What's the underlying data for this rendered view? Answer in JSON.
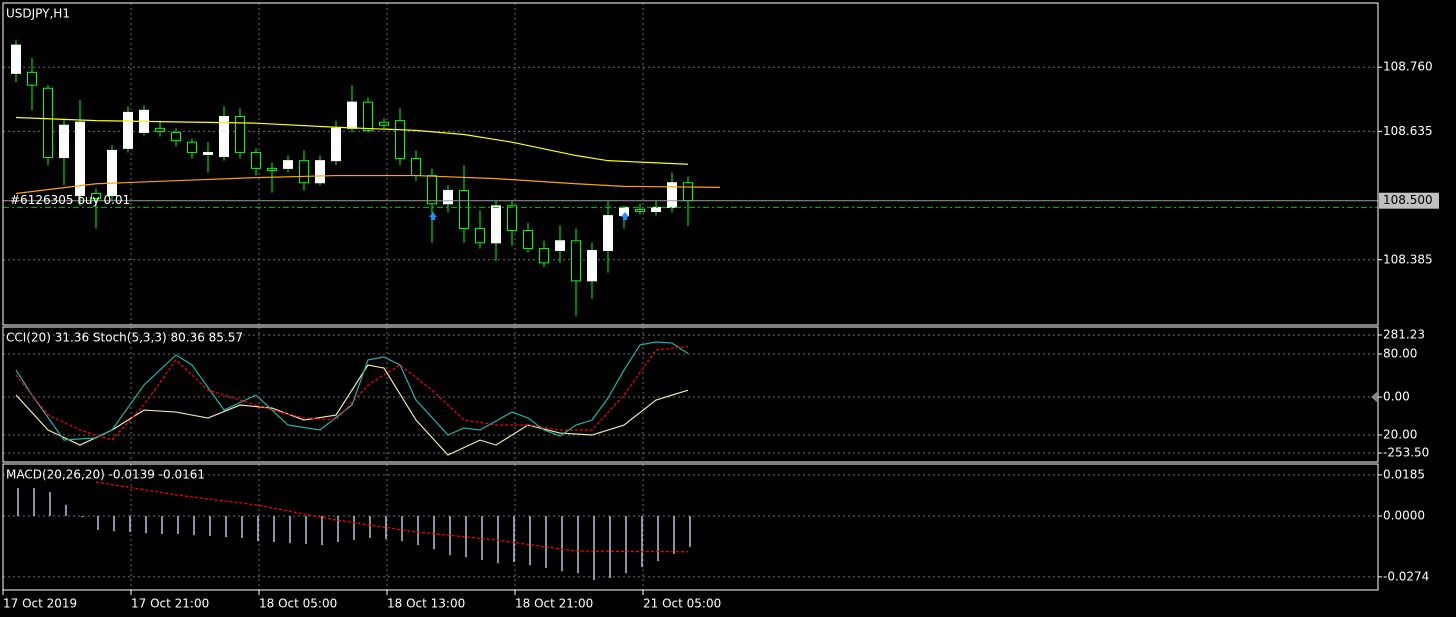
{
  "chart_data": [
    {
      "type": "candlestick",
      "title": "USDJPY,H1",
      "open": [
        108.748,
        108.75,
        108.719,
        108.584,
        108.51,
        108.514,
        108.51,
        108.602,
        108.633,
        108.641,
        108.633,
        108.614,
        108.59,
        108.586,
        108.664,
        108.594,
        108.563,
        108.563,
        108.578,
        108.535,
        108.578,
        108.641,
        108.692,
        108.653,
        108.656,
        108.582,
        108.549,
        108.494,
        108.52,
        108.446,
        108.418,
        108.49,
        108.442,
        108.407,
        108.403,
        108.422,
        108.344,
        108.403,
        108.471,
        108.483,
        108.479,
        108.487,
        108.535
      ],
      "high": [
        108.813,
        108.778,
        108.725,
        108.66,
        108.696,
        108.524,
        108.608,
        108.684,
        108.686,
        108.656,
        108.641,
        108.621,
        108.614,
        108.684,
        108.68,
        108.602,
        108.574,
        108.588,
        108.598,
        108.588,
        108.656,
        108.725,
        108.701,
        108.66,
        108.68,
        108.598,
        108.563,
        108.53,
        108.569,
        108.481,
        108.5,
        108.5,
        108.457,
        108.422,
        108.452,
        108.446,
        108.418,
        108.5,
        108.49,
        108.494,
        108.5,
        108.555,
        108.547
      ],
      "low": [
        108.731,
        108.676,
        108.569,
        108.53,
        108.49,
        108.446,
        108.5,
        108.594,
        108.627,
        108.625,
        108.606,
        108.582,
        108.555,
        108.578,
        108.582,
        108.549,
        108.516,
        108.555,
        108.52,
        108.53,
        108.569,
        108.633,
        108.633,
        108.641,
        108.569,
        108.539,
        108.418,
        108.477,
        108.418,
        108.407,
        108.383,
        108.412,
        108.399,
        108.371,
        108.379,
        108.276,
        108.309,
        108.36,
        108.446,
        108.473,
        108.471,
        108.477,
        108.451
      ],
      "close": [
        108.803,
        108.725,
        108.584,
        108.647,
        108.653,
        108.504,
        108.598,
        108.672,
        108.676,
        108.635,
        108.617,
        108.594,
        108.594,
        108.664,
        108.594,
        108.563,
        108.559,
        108.578,
        108.535,
        108.578,
        108.641,
        108.692,
        108.637,
        108.647,
        108.582,
        108.549,
        108.494,
        108.52,
        108.446,
        108.418,
        108.49,
        108.442,
        108.407,
        108.379,
        108.422,
        108.344,
        108.403,
        108.471,
        108.487,
        108.479,
        108.487,
        108.535,
        108.5
      ],
      "up_color": "#ffffff",
      "down_color": "#000000",
      "wick_color": "#00ff00",
      "series": [
        {
          "color": "#ffff00",
          "x": [
            0,
            5,
            15,
            20,
            25,
            28,
            31,
            35,
            37,
            42
          ],
          "values": [
            108.662,
            108.656,
            108.651,
            108.643,
            108.637,
            108.629,
            108.614,
            108.588,
            108.578,
            108.571
          ]
        },
        {
          "color": "#ffa500",
          "x": [
            0,
            5,
            10,
            15,
            20,
            25,
            30,
            35,
            38,
            44
          ],
          "values": [
            108.514,
            108.533,
            108.539,
            108.545,
            108.549,
            108.549,
            108.543,
            108.533,
            108.528,
            108.526
          ]
        }
      ],
      "bid": {
        "value": 108.5,
        "label": "108.500"
      },
      "order": {
        "value": 108.487,
        "label": "#6126305 buy 0.01"
      },
      "ylim": [
        108.258,
        108.885
      ],
      "yticks": [
        {
          "value": 108.76,
          "label": "108.760"
        },
        {
          "value": 108.635,
          "label": "108.635"
        },
        {
          "value": 108.385,
          "label": "108.385"
        }
      ],
      "grid": true
    },
    {
      "type": "line",
      "title": "CCI(20) 31.36 Stoch(5,3,3) 80.36 85.57",
      "series": [
        {
          "color": "#eee8aa",
          "x": [
            0,
            2,
            4,
            6,
            8,
            10,
            12,
            14,
            16,
            18,
            20,
            22,
            23,
            25,
            27,
            29,
            30,
            32,
            34,
            36,
            38,
            40,
            42
          ],
          "values": [
            9,
            -149.5,
            -217.4,
            -149.5,
            -58.9,
            -68,
            -95.1,
            -36.2,
            -49.8,
            -104.2,
            -81.5,
            145,
            131.4,
            -104.2,
            -262.7,
            -195,
            -217.4,
            -126.8,
            -163.1,
            -172.1,
            -126.8,
            -13.6,
            31.36
          ]
        },
        {
          "color": "#20b2aa",
          "axis": "y2",
          "x": [
            0,
            1,
            3,
            5,
            6,
            8,
            10,
            11,
            13,
            15,
            17,
            19,
            21,
            22,
            23,
            24,
            25,
            27,
            28,
            29,
            31,
            32,
            33,
            34,
            35,
            36,
            37,
            38,
            39,
            40,
            41,
            42
          ],
          "values": [
            68.1,
            49.6,
            16.3,
            17.8,
            23.7,
            57,
            79.3,
            71.9,
            38.5,
            49.6,
            27.4,
            23.7,
            42.2,
            75.6,
            77.8,
            71.9,
            45.9,
            20,
            25.2,
            23.7,
            37,
            32.6,
            23.7,
            19.3,
            27.4,
            31.1,
            47.4,
            68.1,
            86.7,
            88.9,
            88.1,
            80.36
          ]
        },
        {
          "color": "#ff0000",
          "axis": "y2",
          "dash": true,
          "x": [
            0,
            2,
            4,
            6,
            8,
            10,
            12,
            14,
            16,
            18,
            20,
            22,
            24,
            26,
            28,
            30,
            32,
            34,
            36,
            38,
            40,
            42
          ],
          "values": [
            64.4,
            34.8,
            23.7,
            16.3,
            42.2,
            75.6,
            53.3,
            45.9,
            38.5,
            32.6,
            31.1,
            57,
            71.9,
            53.3,
            31.1,
            27.4,
            27.4,
            23.7,
            23.7,
            49.6,
            83,
            85.57
          ]
        }
      ],
      "ylim": [
        -294.3,
        317.5
      ],
      "yticks": [
        {
          "value": 281.23,
          "label": "281.23"
        },
        {
          "value": 0,
          "label": "0.00"
        },
        {
          "value": -253.5,
          "label": "-253.50"
        }
      ],
      "y2lim": [
        0,
        100
      ],
      "y2ticks": [
        {
          "value": 80,
          "label": "80.00"
        },
        {
          "value": 20,
          "label": "20.00"
        }
      ],
      "grid": true
    },
    {
      "type": "bar",
      "title": "MACD(20,26,20) -0.0139 -0.0161",
      "color": "#b0c4de",
      "values": [
        0.0126,
        0.0126,
        0.0108,
        0.005,
        -0.0005,
        -0.0063,
        -0.0068,
        -0.0072,
        -0.0077,
        -0.0081,
        -0.0081,
        -0.0086,
        -0.009,
        -0.0095,
        -0.0099,
        -0.0113,
        -0.0117,
        -0.0122,
        -0.0126,
        -0.0131,
        -0.0117,
        -0.0108,
        -0.0099,
        -0.0104,
        -0.0113,
        -0.0131,
        -0.0149,
        -0.0176,
        -0.0185,
        -0.0198,
        -0.0212,
        -0.0207,
        -0.0221,
        -0.0234,
        -0.0248,
        -0.0257,
        -0.0288,
        -0.0279,
        -0.0257,
        -0.023,
        -0.0203,
        -0.0171,
        -0.0139
      ],
      "series": [
        {
          "color": "#ff0000",
          "dash": true,
          "x": [
            5,
            10,
            15,
            20,
            25,
            30,
            35,
            42
          ],
          "values": [
            0.0153,
            0.0095,
            0.005,
            -0.0018,
            -0.0072,
            -0.0108,
            -0.0158,
            -0.0161
          ]
        }
      ],
      "ylim": [
        -0.0333,
        0.0234
      ],
      "yticks": [
        {
          "value": 0.0185,
          "label": "0.0185"
        },
        {
          "value": 0,
          "label": "0.0000"
        },
        {
          "value": -0.0274,
          "label": "-0.0274"
        }
      ],
      "xticks": [
        {
          "value": 0,
          "label": "17 Oct 2019"
        },
        {
          "value": 8,
          "label": "17 Oct 21:00"
        },
        {
          "value": 16,
          "label": "18 Oct 05:00"
        },
        {
          "value": 24,
          "label": "18 Oct 13:00"
        },
        {
          "value": 32,
          "label": "18 Oct 21:00"
        },
        {
          "value": 40,
          "label": "21 Oct 05:00"
        }
      ],
      "grid": true
    }
  ]
}
